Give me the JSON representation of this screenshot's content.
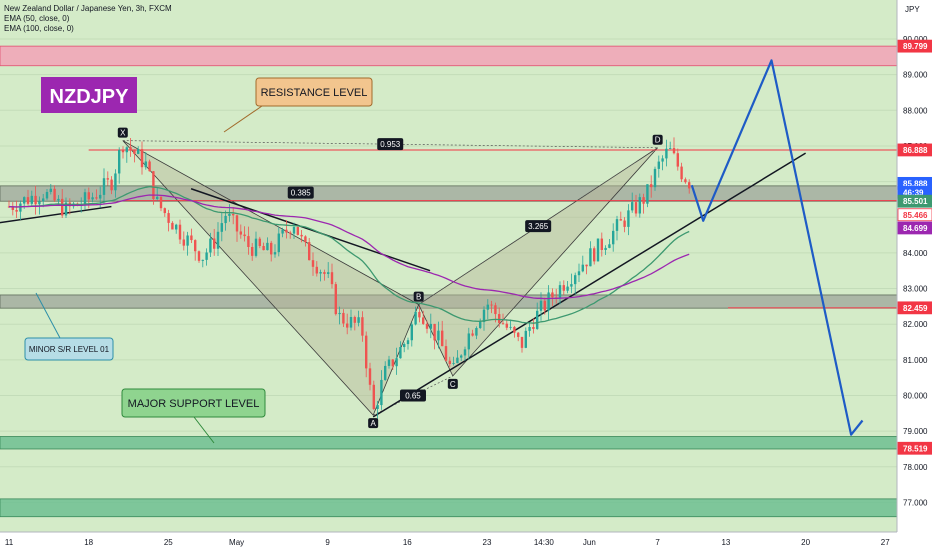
{
  "legend": {
    "symbol_line": "New Zealand Dollar / Japanese Yen, 3h, FXCM",
    "ema50": "EMA (50, close, 0)",
    "ema100": "EMA (100, close, 0)"
  },
  "badge": "NZDJPY",
  "annotations": {
    "resistance": "RESISTANCE LEVEL",
    "minor": "MINOR S/R LEVEL 01",
    "major": "MAJOR SUPPORT LEVEL"
  },
  "pattern": {
    "points": [
      {
        "name": "X",
        "x": "Apr 21",
        "y": 87.15
      },
      {
        "name": "A",
        "x": "May 13",
        "y": 79.45
      },
      {
        "name": "B",
        "x": "May 17",
        "y": 82.55
      },
      {
        "name": "C",
        "x": "May 20",
        "y": 80.55
      },
      {
        "name": "D",
        "x": "Jun 7",
        "y": 86.95
      }
    ],
    "ratios": {
      "xd": "0.953",
      "xab": "0.385",
      "abc": "0.65",
      "bcd": "3.265"
    }
  },
  "colors": {
    "bull": "#26a69a",
    "bear": "#ef5350",
    "ema50": "#3d9970",
    "ema100": "#9c27b0",
    "projection": "#1e5bc6",
    "background": "#d4ebc8",
    "resistance_zone": "#f2a3b7",
    "sr_zone": "#a3aea0",
    "support_zone": "#6fbf92"
  },
  "chart_data": {
    "type": "candlestick",
    "title": "New Zealand Dollar / Japanese Yen, 3h, FXCM",
    "y_unit": "JPY",
    "ylim": [
      76.5,
      91.0
    ],
    "y_ticks": [
      "90.000",
      "89.000",
      "88.000",
      "87.000",
      "86.000",
      "85.000",
      "84.000",
      "83.000",
      "82.000",
      "81.000",
      "80.000",
      "79.000",
      "78.000",
      "77.000"
    ],
    "x_ticks": [
      "11",
      "18",
      "25",
      "May",
      "9",
      "16",
      "23",
      "14:30",
      "Jun",
      "7",
      "13",
      "20",
      "27"
    ],
    "price_tags": [
      {
        "value": "89.799",
        "kind": "level"
      },
      {
        "value": "86.888",
        "kind": "level"
      },
      {
        "value": "85.888",
        "kind": "last"
      },
      {
        "value": "46:39",
        "kind": "countdown"
      },
      {
        "value": "85.501",
        "kind": "ema50"
      },
      {
        "value": "85.466",
        "kind": "level"
      },
      {
        "value": "84.699",
        "kind": "ema100"
      },
      {
        "value": "82.459",
        "kind": "level"
      },
      {
        "value": "78.519",
        "kind": "level"
      }
    ],
    "zones": [
      {
        "name": "resistance",
        "from": 89.25,
        "to": 89.8
      },
      {
        "name": "upper S/R",
        "from": 85.45,
        "to": 85.88
      },
      {
        "name": "minor S/R",
        "from": 82.45,
        "to": 82.82
      },
      {
        "name": "major support",
        "from": 78.5,
        "to": 78.85
      },
      {
        "name": "lower support",
        "from": 76.6,
        "to": 77.1
      }
    ],
    "close_path": [
      [
        "Apr 11",
        85.3
      ],
      [
        "Apr 14",
        85.7
      ],
      [
        "Apr 16",
        85.2
      ],
      [
        "Apr 18",
        85.5
      ],
      [
        "Apr 20",
        86.0
      ],
      [
        "Apr 21",
        87.1
      ],
      [
        "Apr 23",
        86.5
      ],
      [
        "Apr 24",
        85.4
      ],
      [
        "Apr 26",
        84.6
      ],
      [
        "Apr 28",
        83.9
      ],
      [
        "Apr 29",
        84.3
      ],
      [
        "Apr 30",
        85.1
      ],
      [
        "May 2",
        84.2
      ],
      [
        "May 4",
        84.0
      ],
      [
        "May 6",
        84.9
      ],
      [
        "May 7",
        84.1
      ],
      [
        "May 9",
        83.3
      ],
      [
        "May 10",
        82.2
      ],
      [
        "May 12",
        81.9
      ],
      [
        "May 13",
        79.5
      ],
      [
        "May 14",
        80.6
      ],
      [
        "May 16",
        81.6
      ],
      [
        "May 17",
        82.5
      ],
      [
        "May 19",
        81.4
      ],
      [
        "May 20",
        80.6
      ],
      [
        "May 21",
        81.5
      ],
      [
        "May 23",
        82.6
      ],
      [
        "May 24",
        82.2
      ],
      [
        "May 26",
        81.4
      ],
      [
        "May 27",
        82.1
      ],
      [
        "May 29",
        82.9
      ],
      [
        "May 31",
        83.6
      ],
      [
        "Jun 2",
        84.2
      ],
      [
        "Jun 4",
        84.9
      ],
      [
        "Jun 6",
        85.6
      ],
      [
        "Jun 7",
        86.4
      ],
      [
        "Jun 8",
        86.9
      ],
      [
        "Jun 9",
        86.3
      ],
      [
        "Jun 10",
        85.9
      ]
    ],
    "projection_path": [
      [
        "Jun 10",
        85.9
      ],
      [
        "Jun 11",
        84.9
      ],
      [
        "Jun 17",
        89.4
      ],
      [
        "Jun 24",
        78.9
      ],
      [
        "Jun 25",
        79.3
      ]
    ],
    "trendlines": [
      {
        "name": "rising support",
        "from": [
          "May 13",
          79.4
        ],
        "to": [
          "Jun 20",
          86.8
        ]
      },
      {
        "name": "lower-left support",
        "from": [
          "Apr 7",
          84.7
        ],
        "to": [
          "Apr 20",
          85.3
        ]
      },
      {
        "name": "falling resistance",
        "from": [
          "Apr 27",
          85.8
        ],
        "to": [
          "May 18",
          83.5
        ]
      }
    ]
  }
}
